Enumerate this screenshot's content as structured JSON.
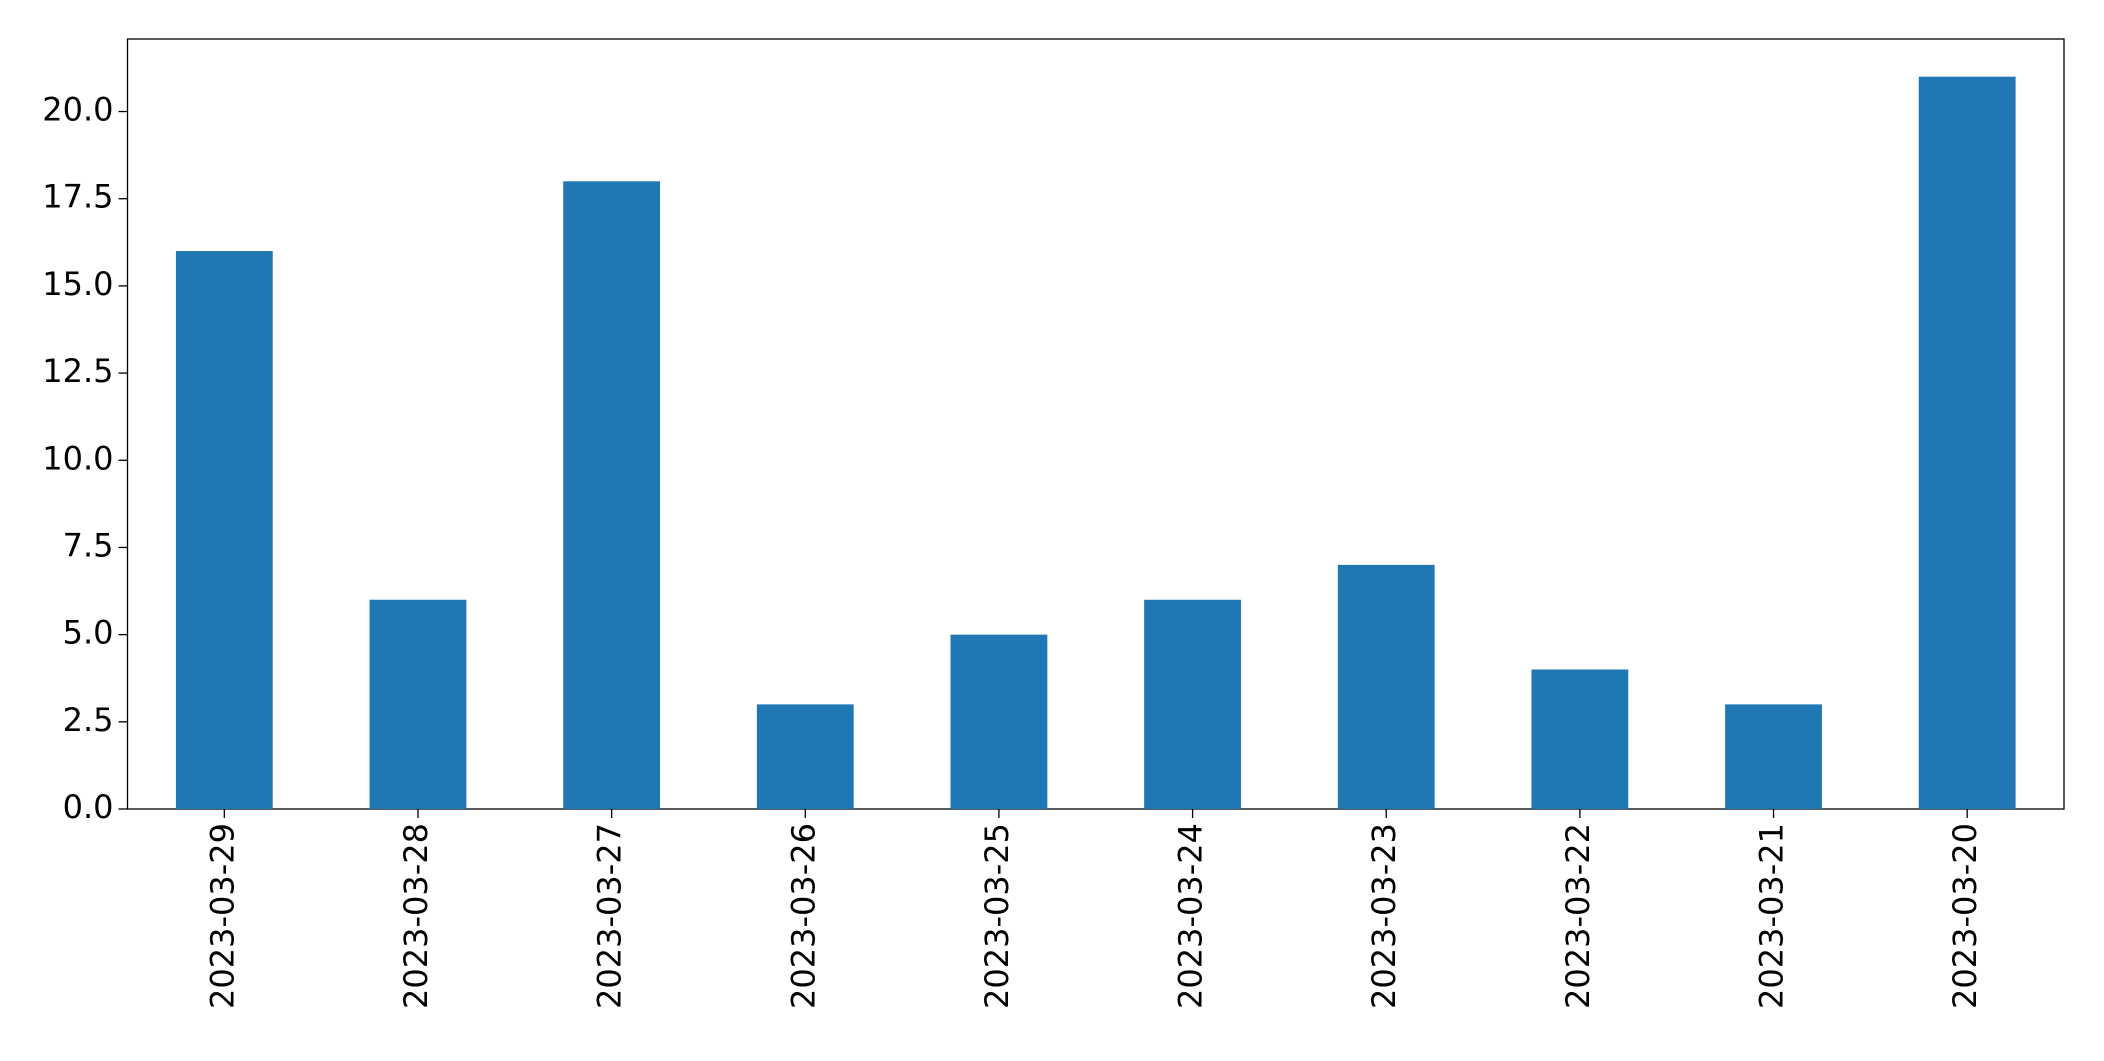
{
  "chart_data": {
    "type": "bar",
    "categories": [
      "2023-03-29",
      "2023-03-28",
      "2023-03-27",
      "2023-03-26",
      "2023-03-25",
      "2023-03-24",
      "2023-03-23",
      "2023-03-22",
      "2023-03-21",
      "2023-03-20"
    ],
    "values": [
      16,
      6,
      18,
      3,
      5,
      6,
      7,
      4,
      3,
      21
    ],
    "color": "#1f77b4",
    "ylim": [
      0,
      22.08
    ],
    "yticks": [
      {
        "value": 0,
        "label": "0.0"
      },
      2.5,
      {
        "value": 5,
        "label": "5.0"
      },
      7.5,
      {
        "value": 10,
        "label": "10.0"
      },
      12.5,
      {
        "value": 15,
        "label": "15.0"
      },
      17.5,
      {
        "value": 20,
        "label": "20.0"
      }
    ],
    "grid": false
  }
}
